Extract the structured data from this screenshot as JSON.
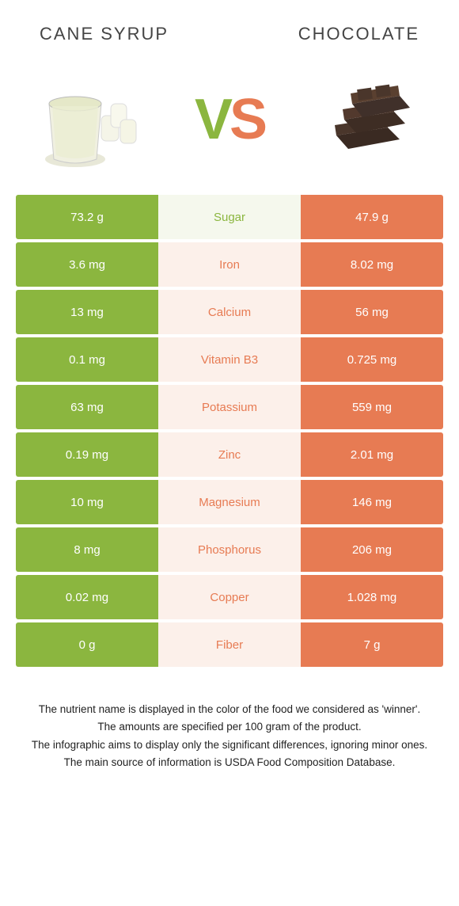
{
  "left": {
    "title": "Cane syrup",
    "color": "#8bb63f",
    "mid_bg": "#f5f8ed"
  },
  "right": {
    "title": "Chocolate",
    "color": "#e77b53",
    "mid_bg": "#fcf0ea"
  },
  "vs": {
    "v": "V",
    "s": "S"
  },
  "rows": [
    {
      "left": "73.2 g",
      "label": "Sugar",
      "right": "47.9 g",
      "winner": "left"
    },
    {
      "left": "3.6 mg",
      "label": "Iron",
      "right": "8.02 mg",
      "winner": "right"
    },
    {
      "left": "13 mg",
      "label": "Calcium",
      "right": "56 mg",
      "winner": "right"
    },
    {
      "left": "0.1 mg",
      "label": "Vitamin B3",
      "right": "0.725 mg",
      "winner": "right"
    },
    {
      "left": "63 mg",
      "label": "Potassium",
      "right": "559 mg",
      "winner": "right"
    },
    {
      "left": "0.19 mg",
      "label": "Zinc",
      "right": "2.01 mg",
      "winner": "right"
    },
    {
      "left": "10 mg",
      "label": "Magnesium",
      "right": "146 mg",
      "winner": "right"
    },
    {
      "left": "8 mg",
      "label": "Phosphorus",
      "right": "206 mg",
      "winner": "right"
    },
    {
      "left": "0.02 mg",
      "label": "Copper",
      "right": "1.028 mg",
      "winner": "right"
    },
    {
      "left": "0 g",
      "label": "Fiber",
      "right": "7 g",
      "winner": "right"
    }
  ],
  "footnotes": [
    "The nutrient name is displayed in the color of the food we considered as 'winner'.",
    "The amounts are specified per 100 gram of the product.",
    "The infographic aims to display only the significant differences, ignoring minor ones.",
    "The main source of information is USDA Food Composition Database."
  ]
}
